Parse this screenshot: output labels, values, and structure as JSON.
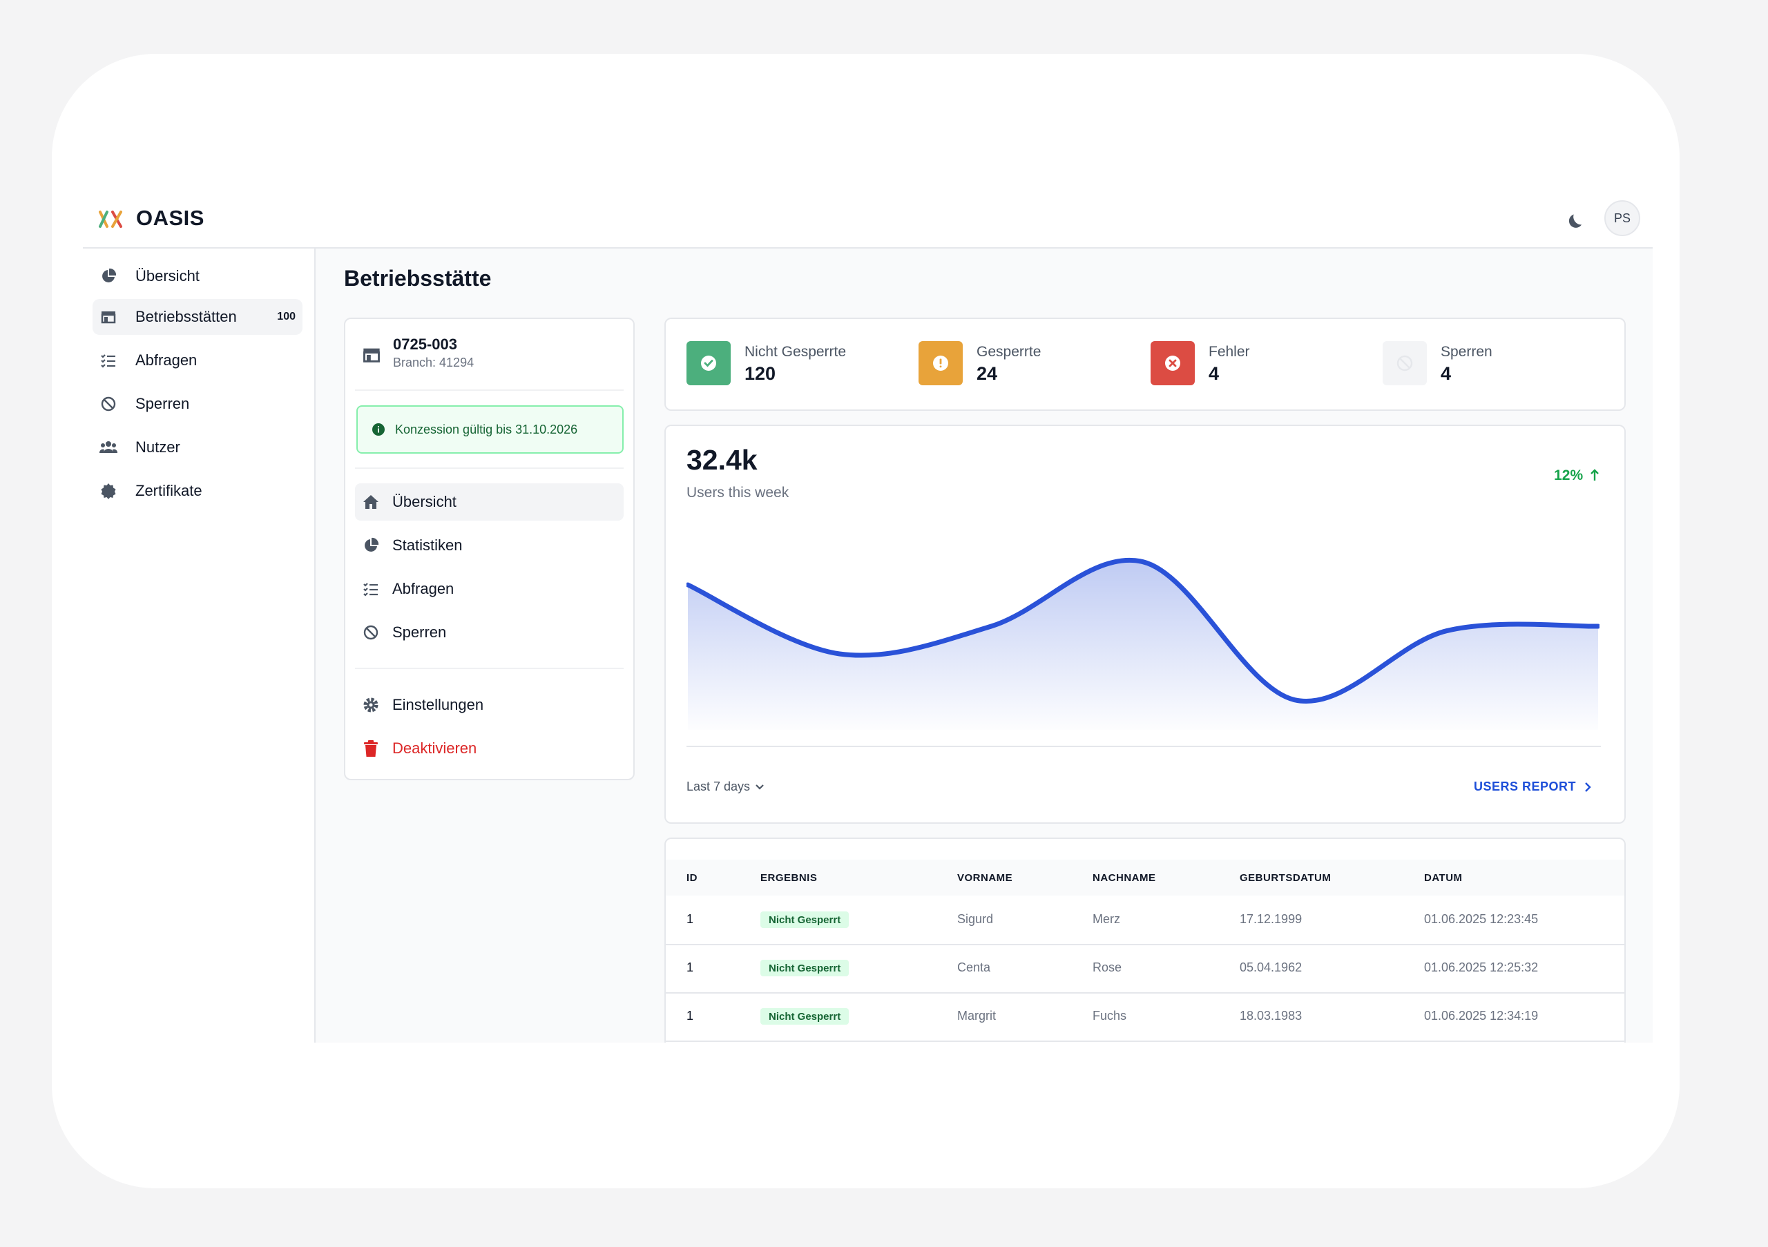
{
  "app": {
    "brand": "OASIS",
    "user_initials": "PS"
  },
  "sidebar": {
    "items": [
      {
        "label": "Übersicht",
        "icon": "pie-chart-icon"
      },
      {
        "label": "Betriebsstätten",
        "icon": "store-icon",
        "badge": "100",
        "active": true
      },
      {
        "label": "Abfragen",
        "icon": "checklist-icon"
      },
      {
        "label": "Sperren",
        "icon": "ban-icon"
      },
      {
        "label": "Nutzer",
        "icon": "users-icon"
      },
      {
        "label": "Zertifikate",
        "icon": "badge-icon"
      }
    ]
  },
  "page": {
    "title": "Betriebsstätte"
  },
  "site": {
    "id": "0725-003",
    "branch": "Branch: 41294",
    "alert": "Konzession gültig bis 31.10.2026",
    "menu": [
      {
        "label": "Übersicht",
        "icon": "home-icon",
        "active": true
      },
      {
        "label": "Statistiken",
        "icon": "pie-chart-icon"
      },
      {
        "label": "Abfragen",
        "icon": "checklist-icon"
      },
      {
        "label": "Sperren",
        "icon": "ban-icon"
      }
    ],
    "settings_label": "Einstellungen",
    "deactivate_label": "Deaktivieren"
  },
  "stats": [
    {
      "label": "Nicht Gesperrte",
      "value": "120",
      "color": "#4caf7d",
      "icon": "check-circle-icon"
    },
    {
      "label": "Gesperrte",
      "value": "24",
      "color": "#e8a33a",
      "icon": "alert-circle-icon"
    },
    {
      "label": "Fehler",
      "value": "4",
      "color": "#dc4c43",
      "icon": "x-circle-icon"
    },
    {
      "label": "Sperren",
      "value": "4",
      "color": "#f3f4f6",
      "icon": "ban-icon"
    }
  ],
  "chart": {
    "total": "32.4k",
    "subtitle": "Users this week",
    "trend": "12%",
    "range_label": "Last 7 days",
    "report_label": "USERS REPORT"
  },
  "chart_data": {
    "type": "area",
    "x": [
      0,
      1,
      2,
      3,
      4,
      5,
      6
    ],
    "values": [
      6.0,
      3.0,
      4.2,
      7.0,
      1.0,
      4.0,
      4.2
    ],
    "color": "#2a52d8",
    "ylim": [
      0,
      7.5
    ]
  },
  "table": {
    "headers": [
      "ID",
      "ERGEBNIS",
      "VORNAME",
      "NACHNAME",
      "GEBURTSDATUM",
      "DATUM"
    ],
    "rows": [
      {
        "id": "1",
        "result": "Nicht Gesperrt",
        "first": "Sigurd",
        "last": "Merz",
        "birth": "17.12.1999",
        "date": "01.06.2025 12:23:45"
      },
      {
        "id": "1",
        "result": "Nicht Gesperrt",
        "first": "Centa",
        "last": "Rose",
        "birth": "05.04.1962",
        "date": "01.06.2025 12:25:32"
      },
      {
        "id": "1",
        "result": "Nicht Gesperrt",
        "first": "Margrit",
        "last": "Fuchs",
        "birth": "18.03.1983",
        "date": "01.06.2025 12:34:19"
      }
    ]
  }
}
